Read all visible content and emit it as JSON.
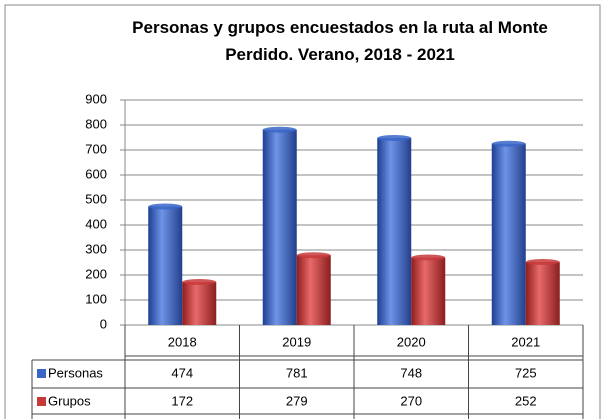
{
  "chart_data": {
    "type": "bar",
    "title": "Personas y grupos encuestados en la ruta al Monte Perdido. Verano, 2018 - 2021",
    "categories": [
      "2018",
      "2019",
      "2020",
      "2021"
    ],
    "series": [
      {
        "name": "Personas",
        "color": "#3a66c8",
        "values": [
          474,
          781,
          748,
          725
        ]
      },
      {
        "name": "Grupos",
        "color": "#c83a3a",
        "values": [
          172,
          279,
          270,
          252
        ]
      }
    ],
    "ylim": [
      0,
      900
    ],
    "yticks": [
      0,
      100,
      200,
      300,
      400,
      500,
      600,
      700,
      800,
      900
    ],
    "grid": true
  }
}
